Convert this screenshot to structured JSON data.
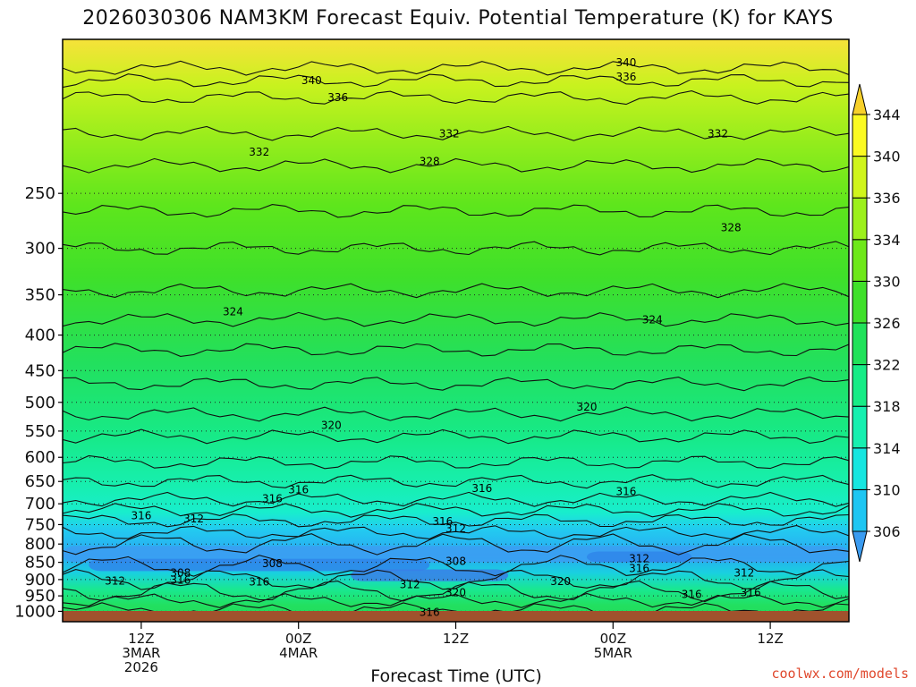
{
  "title": "2026030306 NAM3KM Forecast Equiv. Potential Temperature (K) for KAYS",
  "credit": "coolwx.com/models",
  "chart_data": {
    "type": "heatmap",
    "xlabel": "Forecast Time (UTC)",
    "ylabel": "",
    "x_ticks": [
      {
        "hour": 6,
        "lines": [
          "12Z",
          "3MAR",
          "2026"
        ]
      },
      {
        "hour": 18,
        "lines": [
          "00Z",
          "4MAR"
        ]
      },
      {
        "hour": 30,
        "lines": [
          "12Z"
        ]
      },
      {
        "hour": 42,
        "lines": [
          "00Z",
          "5MAR"
        ]
      },
      {
        "hour": 54,
        "lines": [
          "12Z"
        ]
      }
    ],
    "xlim_hours": [
      0,
      60
    ],
    "ylim_hpa": [
      1035,
      150
    ],
    "y_ticks": [
      250,
      300,
      350,
      400,
      450,
      500,
      550,
      600,
      650,
      700,
      750,
      800,
      850,
      900,
      950,
      1000
    ],
    "y_tick_labels": [
      "250",
      "300",
      "350",
      "400",
      "450",
      "500",
      "550",
      "600",
      "650",
      "700",
      "750",
      "800",
      "850",
      "900",
      "950",
      "1000"
    ],
    "colorbar": {
      "levels": [
        306,
        310,
        314,
        318,
        322,
        326,
        330,
        334,
        336,
        340,
        344
      ],
      "labels": [
        "306",
        "310",
        "314",
        "318",
        "322",
        "326",
        "330",
        "334",
        "336",
        "340",
        "344"
      ],
      "colors": [
        "#3a9bf0",
        "#1ec6f2",
        "#17e6e0",
        "#17f0b0",
        "#17ec86",
        "#20e25a",
        "#3fe02a",
        "#6ee81a",
        "#9cf01c",
        "#d0f51c",
        "#fbfa22",
        "#f7d02a"
      ]
    },
    "contour_labels": [
      {
        "hour": 19,
        "p": 172,
        "text": "340"
      },
      {
        "hour": 21,
        "p": 182,
        "text": "336"
      },
      {
        "hour": 15,
        "p": 218,
        "text": "332"
      },
      {
        "hour": 28,
        "p": 225,
        "text": "328"
      },
      {
        "hour": 29.5,
        "p": 205,
        "text": "332"
      },
      {
        "hour": 43,
        "p": 162,
        "text": "340"
      },
      {
        "hour": 43,
        "p": 170,
        "text": "336"
      },
      {
        "hour": 50,
        "p": 205,
        "text": "332"
      },
      {
        "hour": 51,
        "p": 280,
        "text": "328"
      },
      {
        "hour": 13,
        "p": 370,
        "text": "324"
      },
      {
        "hour": 45,
        "p": 380,
        "text": "324"
      },
      {
        "hour": 20.5,
        "p": 540,
        "text": "320"
      },
      {
        "hour": 40,
        "p": 508,
        "text": "320"
      },
      {
        "hour": 32,
        "p": 665,
        "text": "316"
      },
      {
        "hour": 43,
        "p": 672,
        "text": "316"
      },
      {
        "hour": 18,
        "p": 668,
        "text": "316"
      },
      {
        "hour": 16,
        "p": 688,
        "text": "316"
      },
      {
        "hour": 6,
        "p": 728,
        "text": "316"
      },
      {
        "hour": 10,
        "p": 736,
        "text": "312"
      },
      {
        "hour": 29,
        "p": 742,
        "text": "316"
      },
      {
        "hour": 30,
        "p": 760,
        "text": "312"
      },
      {
        "hour": 16,
        "p": 853,
        "text": "308"
      },
      {
        "hour": 9,
        "p": 880,
        "text": "308"
      },
      {
        "hour": 30,
        "p": 847,
        "text": "308"
      },
      {
        "hour": 4,
        "p": 904,
        "text": "312"
      },
      {
        "hour": 9,
        "p": 902,
        "text": "316"
      },
      {
        "hour": 15,
        "p": 907,
        "text": "316"
      },
      {
        "hour": 26.5,
        "p": 915,
        "text": "312"
      },
      {
        "hour": 38,
        "p": 905,
        "text": "320"
      },
      {
        "hour": 44,
        "p": 840,
        "text": "312"
      },
      {
        "hour": 44,
        "p": 867,
        "text": "316"
      },
      {
        "hour": 30,
        "p": 940,
        "text": "320"
      },
      {
        "hour": 28,
        "p": 1003,
        "text": "316"
      },
      {
        "hour": 52,
        "p": 880,
        "text": "312"
      },
      {
        "hour": 48,
        "p": 945,
        "text": "316"
      },
      {
        "hour": 52.5,
        "p": 940,
        "text": "316"
      }
    ]
  }
}
